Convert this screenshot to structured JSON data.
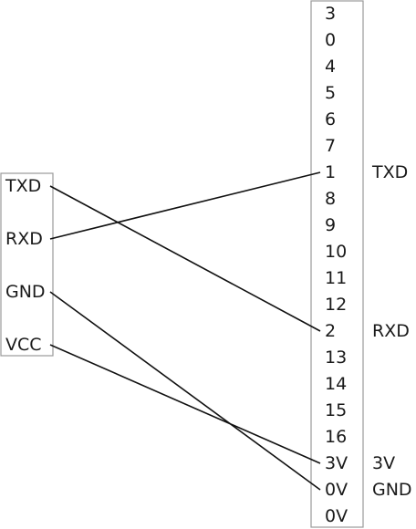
{
  "connector": {
    "pins": [
      {
        "label": "3"
      },
      {
        "label": "0"
      },
      {
        "label": "4"
      },
      {
        "label": "5"
      },
      {
        "label": "6"
      },
      {
        "label": "7"
      },
      {
        "label": "1",
        "function": "TXD"
      },
      {
        "label": "8"
      },
      {
        "label": "9"
      },
      {
        "label": "10"
      },
      {
        "label": "11"
      },
      {
        "label": "12"
      },
      {
        "label": "2",
        "function": "RXD"
      },
      {
        "label": "13"
      },
      {
        "label": "14"
      },
      {
        "label": "15"
      },
      {
        "label": "16"
      },
      {
        "label": "3V",
        "function": "3V"
      },
      {
        "label": "0V",
        "function": "GND"
      },
      {
        "label": "0V"
      }
    ]
  },
  "module": {
    "pins": [
      {
        "label": "TXD"
      },
      {
        "label": "RXD"
      },
      {
        "label": "GND"
      },
      {
        "label": "VCC"
      }
    ]
  },
  "connections": [
    {
      "from": "TXD",
      "to": "2"
    },
    {
      "from": "RXD",
      "to": "1"
    },
    {
      "from": "GND",
      "to": "0V"
    },
    {
      "from": "VCC",
      "to": "3V"
    }
  ]
}
